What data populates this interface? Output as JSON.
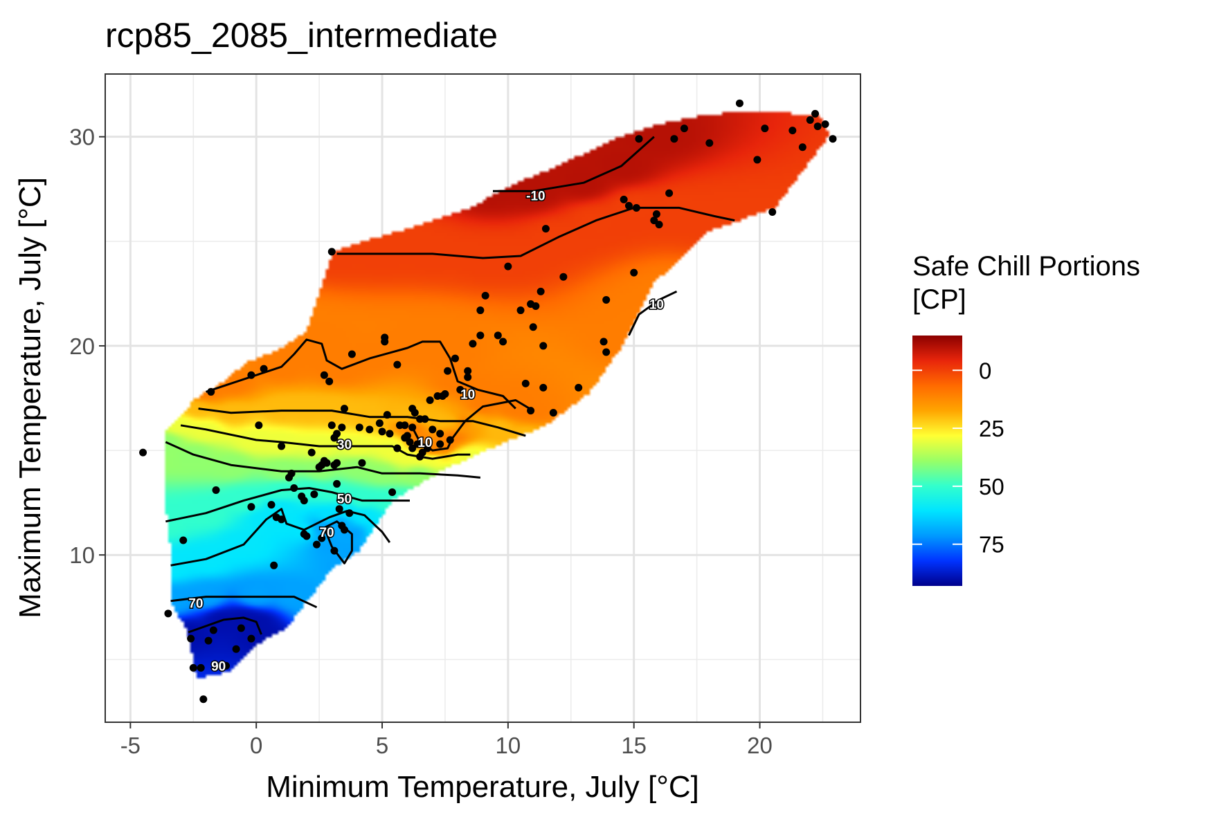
{
  "chart_data": {
    "type": "heatmap",
    "title": "rcp85_2085_intermediate",
    "xlabel": "Minimum Temperature, July [°C]",
    "ylabel": "Maximum Temperature, July [°C]",
    "xlim": [
      -6,
      24
    ],
    "ylim": [
      2,
      33
    ],
    "x_ticks": [
      -5,
      0,
      5,
      10,
      15,
      20
    ],
    "x_tick_labels": [
      "-5",
      "0",
      "5",
      "10",
      "15",
      "20"
    ],
    "y_ticks": [
      10,
      20,
      30
    ],
    "y_tick_labels": [
      "10",
      "20",
      "30"
    ],
    "grid": true,
    "legend": {
      "title_line1": "Safe Chill Portions",
      "title_line2": "[CP]",
      "position": "right",
      "range": [
        -15,
        93
      ],
      "ticks": [
        0,
        25,
        50,
        75
      ],
      "tick_labels": [
        "0",
        "25",
        "50",
        "75"
      ],
      "colors": [
        "#8b0000",
        "#e8250b",
        "#ff6a00",
        "#ffa500",
        "#ffff33",
        "#99ff66",
        "#33ffcc",
        "#00e5ff",
        "#0099ff",
        "#0033ff",
        "#00008b"
      ]
    },
    "contour_labels": [
      {
        "text": "-10",
        "x": 11.1,
        "y": 27.2
      },
      {
        "text": "10",
        "x": 15.9,
        "y": 22.0
      },
      {
        "text": "10",
        "x": 8.4,
        "y": 17.7
      },
      {
        "text": "10",
        "x": 6.7,
        "y": 15.4
      },
      {
        "text": "30",
        "x": 3.5,
        "y": 15.3
      },
      {
        "text": "50",
        "x": 3.5,
        "y": 12.7
      },
      {
        "text": "70",
        "x": 2.8,
        "y": 11.1
      },
      {
        "text": "70",
        "x": -2.4,
        "y": 7.7
      },
      {
        "text": "90",
        "x": -1.5,
        "y": 4.7
      }
    ],
    "contours": [
      {
        "level": -10,
        "points": [
          [
            9.4,
            27.4
          ],
          [
            11,
            27.4
          ],
          [
            13,
            27.8
          ],
          [
            14.5,
            28.6
          ],
          [
            15.8,
            30
          ]
        ]
      },
      {
        "level": 0,
        "points": [
          [
            3.2,
            24.4
          ],
          [
            5,
            24.4
          ],
          [
            7,
            24.4
          ],
          [
            9,
            24.2
          ],
          [
            10.5,
            24.3
          ],
          [
            12,
            25.2
          ],
          [
            13.5,
            26
          ],
          [
            15,
            26.6
          ],
          [
            16.8,
            26.6
          ],
          [
            18.2,
            26.2
          ],
          [
            19,
            26
          ]
        ]
      },
      {
        "level": 10,
        "points": [
          [
            14.8,
            20.5
          ],
          [
            15.2,
            21.5
          ],
          [
            16,
            22.2
          ],
          [
            16.7,
            22.6
          ]
        ]
      },
      {
        "level": 10,
        "points": [
          [
            -2,
            17.8
          ],
          [
            -1,
            18.2
          ],
          [
            1,
            19
          ],
          [
            1.5,
            19.6
          ],
          [
            2,
            20.3
          ],
          [
            2.6,
            20.1
          ],
          [
            2.8,
            19.3
          ],
          [
            3.4,
            18.9
          ],
          [
            4.5,
            19.4
          ],
          [
            6,
            19.9
          ],
          [
            6.6,
            20.2
          ],
          [
            7.3,
            20.2
          ],
          [
            7.7,
            19.4
          ],
          [
            8,
            18.3
          ],
          [
            8.8,
            17.9
          ],
          [
            9.8,
            17.6
          ],
          [
            10.3,
            17
          ]
        ]
      },
      {
        "level": 10,
        "points": [
          [
            6.2,
            16.1
          ],
          [
            6.5,
            15.4
          ],
          [
            7,
            15
          ],
          [
            7.6,
            15.1
          ],
          [
            7.8,
            15.6
          ],
          [
            8.3,
            16.4
          ],
          [
            9,
            17.1
          ],
          [
            10.3,
            17.4
          ],
          [
            11,
            16.9
          ]
        ]
      },
      {
        "level": 20,
        "points": [
          [
            -2.3,
            17
          ],
          [
            -1,
            16.8
          ],
          [
            1,
            16.9
          ],
          [
            2,
            16.9
          ],
          [
            3,
            16.9
          ],
          [
            4.5,
            16.6
          ],
          [
            6,
            16.6
          ],
          [
            6.7,
            16.5
          ],
          [
            7.3,
            16.4
          ],
          [
            7.8,
            16.4
          ],
          [
            8.6,
            16.4
          ],
          [
            9.6,
            16.1
          ],
          [
            10.7,
            15.7
          ]
        ]
      },
      {
        "level": 30,
        "points": [
          [
            -3,
            16.2
          ],
          [
            -2,
            16
          ],
          [
            0,
            15.5
          ],
          [
            1,
            15.4
          ],
          [
            2.5,
            15.2
          ],
          [
            4,
            15.2
          ],
          [
            5.4,
            15.2
          ],
          [
            6,
            14.8
          ],
          [
            6.5,
            14.7
          ],
          [
            7,
            14.6
          ],
          [
            8,
            14.8
          ],
          [
            8.5,
            14.8
          ]
        ]
      },
      {
        "level": 40,
        "points": [
          [
            -3.6,
            15.4
          ],
          [
            -2.5,
            14.8
          ],
          [
            -1,
            14.3
          ],
          [
            1,
            14
          ],
          [
            2.5,
            14
          ],
          [
            4,
            14.2
          ],
          [
            5,
            13.9
          ],
          [
            6.5,
            13.9
          ],
          [
            8,
            13.8
          ],
          [
            8.9,
            13.7
          ]
        ]
      },
      {
        "level": 50,
        "points": [
          [
            -3.6,
            11.6
          ],
          [
            -2,
            12
          ],
          [
            -0.5,
            12.6
          ],
          [
            1,
            13.1
          ],
          [
            2.1,
            13.2
          ],
          [
            3,
            13
          ],
          [
            4.2,
            12.6
          ],
          [
            5.2,
            12.6
          ],
          [
            6.1,
            12.6
          ]
        ]
      },
      {
        "level": 60,
        "points": [
          [
            -3.4,
            9.5
          ],
          [
            -2,
            9.8
          ],
          [
            -0.5,
            10.5
          ],
          [
            0.4,
            11.7
          ],
          [
            1,
            12.2
          ],
          [
            1.2,
            11.5
          ],
          [
            1.9,
            11.2
          ],
          [
            2.9,
            11.8
          ],
          [
            3.6,
            12.1
          ],
          [
            4.3,
            11.9
          ],
          [
            5,
            11.1
          ],
          [
            5.3,
            10.6
          ]
        ]
      },
      {
        "level": 70,
        "points": [
          [
            2.7,
            11.3
          ],
          [
            3,
            10.4
          ],
          [
            3.5,
            9.6
          ],
          [
            3.8,
            10.2
          ],
          [
            3.8,
            11
          ],
          [
            3.2,
            11.6
          ],
          [
            2.7,
            11.3
          ]
        ]
      },
      {
        "level": 70,
        "points": [
          [
            -3.4,
            7.8
          ],
          [
            -2,
            8
          ],
          [
            0,
            8
          ],
          [
            1.5,
            8
          ],
          [
            2.4,
            7.5
          ]
        ]
      },
      {
        "level": 90,
        "points": [
          [
            -2.7,
            6.3
          ],
          [
            -1.3,
            6.9
          ],
          [
            -0.5,
            7
          ],
          [
            0,
            6.8
          ],
          [
            0.2,
            6.2
          ]
        ]
      }
    ],
    "points": [
      [
        -4.5,
        14.9
      ],
      [
        -3.5,
        7.2
      ],
      [
        -2.9,
        10.7
      ],
      [
        -2.6,
        6
      ],
      [
        -2.5,
        4.6
      ],
      [
        -2.2,
        4.6
      ],
      [
        -2.1,
        3.1
      ],
      [
        -1.9,
        5.9
      ],
      [
        -1.7,
        6.4
      ],
      [
        -1.6,
        13.1
      ],
      [
        -1.8,
        17.8
      ],
      [
        -1.2,
        4.7
      ],
      [
        -0.8,
        5.5
      ],
      [
        -0.6,
        6.5
      ],
      [
        -0.2,
        6
      ],
      [
        -0.2,
        12.3
      ],
      [
        -0.2,
        18.6
      ],
      [
        0.3,
        18.9
      ],
      [
        0.1,
        16.2
      ],
      [
        0.6,
        12.4
      ],
      [
        0.7,
        9.5
      ],
      [
        0.8,
        11.8
      ],
      [
        1,
        11.7
      ],
      [
        1,
        15.2
      ],
      [
        1.3,
        13.7
      ],
      [
        1.4,
        13.9
      ],
      [
        1.5,
        13.2
      ],
      [
        1.8,
        12.8
      ],
      [
        1.9,
        12.6
      ],
      [
        1.9,
        11
      ],
      [
        2,
        10.9
      ],
      [
        2.2,
        14.9
      ],
      [
        2.3,
        12.9
      ],
      [
        2.4,
        10.5
      ],
      [
        2.6,
        10.8
      ],
      [
        2.5,
        14.2
      ],
      [
        2.6,
        14.3
      ],
      [
        2.7,
        14.5
      ],
      [
        2.7,
        18.6
      ],
      [
        2.8,
        14.4
      ],
      [
        2.9,
        18.3
      ],
      [
        3,
        24.5
      ],
      [
        3,
        16.2
      ],
      [
        3.1,
        15.6
      ],
      [
        3.1,
        14.3
      ],
      [
        3.2,
        14.4
      ],
      [
        3.2,
        13.4
      ],
      [
        3.2,
        15.8
      ],
      [
        3.3,
        12.2
      ],
      [
        3.4,
        11.4
      ],
      [
        3.4,
        16.1
      ],
      [
        3.5,
        17
      ],
      [
        3.5,
        11.2
      ],
      [
        3.7,
        12
      ],
      [
        3.1,
        10.2
      ],
      [
        3.8,
        19.6
      ],
      [
        4.1,
        16.1
      ],
      [
        4.2,
        14.4
      ],
      [
        4.5,
        16
      ],
      [
        4.9,
        16.3
      ],
      [
        5,
        15.9
      ],
      [
        5.1,
        20.2
      ],
      [
        5.1,
        20.4
      ],
      [
        5.2,
        16.7
      ],
      [
        5.3,
        15.8
      ],
      [
        5.4,
        13
      ],
      [
        5.6,
        15.1
      ],
      [
        5.6,
        19.1
      ],
      [
        5.7,
        16.2
      ],
      [
        5.9,
        16.2
      ],
      [
        5.9,
        15.6
      ],
      [
        6,
        15.7
      ],
      [
        6.1,
        15.4
      ],
      [
        6.2,
        16.1
      ],
      [
        6.2,
        17
      ],
      [
        6.2,
        15.1
      ],
      [
        6.3,
        16.8
      ],
      [
        6.5,
        16.5
      ],
      [
        6.4,
        15.3
      ],
      [
        6.5,
        14.7
      ],
      [
        6.6,
        14.9
      ],
      [
        6.7,
        16.5
      ],
      [
        6.8,
        15.1
      ],
      [
        6.9,
        17.4
      ],
      [
        7,
        16
      ],
      [
        7.2,
        17.6
      ],
      [
        7.3,
        15.8
      ],
      [
        7.3,
        15.3
      ],
      [
        7.5,
        17.7
      ],
      [
        7.4,
        17.6
      ],
      [
        7.6,
        18.8
      ],
      [
        7.7,
        15.5
      ],
      [
        7.9,
        19.4
      ],
      [
        8.1,
        17.9
      ],
      [
        8.4,
        18.8
      ],
      [
        8.4,
        18.5
      ],
      [
        8.6,
        20.1
      ],
      [
        8.9,
        20.5
      ],
      [
        8.9,
        21.7
      ],
      [
        9.1,
        22.4
      ],
      [
        9.6,
        20.5
      ],
      [
        9.8,
        20.2
      ],
      [
        10,
        23.8
      ],
      [
        10.5,
        21.7
      ],
      [
        10.7,
        18.2
      ],
      [
        10.9,
        22
      ],
      [
        10.9,
        16.9
      ],
      [
        11,
        20.9
      ],
      [
        11.1,
        21.9
      ],
      [
        11.3,
        22.6
      ],
      [
        11.4,
        18
      ],
      [
        11.4,
        20
      ],
      [
        11.5,
        25.6
      ],
      [
        11.8,
        16.8
      ],
      [
        12.2,
        23.3
      ],
      [
        12.8,
        18
      ],
      [
        13.8,
        20.2
      ],
      [
        13.9,
        19.7
      ],
      [
        13.9,
        22.2
      ],
      [
        14.6,
        27
      ],
      [
        14.8,
        26.7
      ],
      [
        15.1,
        26.6
      ],
      [
        15,
        23.5
      ],
      [
        15.2,
        29.9
      ],
      [
        15.9,
        26.3
      ],
      [
        15.8,
        26
      ],
      [
        16,
        25.8
      ],
      [
        16.4,
        27.3
      ],
      [
        16.6,
        29.9
      ],
      [
        17,
        30.4
      ],
      [
        18,
        29.7
      ],
      [
        19.2,
        31.6
      ],
      [
        19.9,
        28.9
      ],
      [
        20.2,
        30.4
      ],
      [
        20.5,
        26.4
      ],
      [
        21.3,
        30.3
      ],
      [
        21.7,
        29.5
      ],
      [
        22,
        30.8
      ],
      [
        22.2,
        31.1
      ],
      [
        22.3,
        30.5
      ],
      [
        22.6,
        30.6
      ],
      [
        22.9,
        29.9
      ]
    ]
  }
}
